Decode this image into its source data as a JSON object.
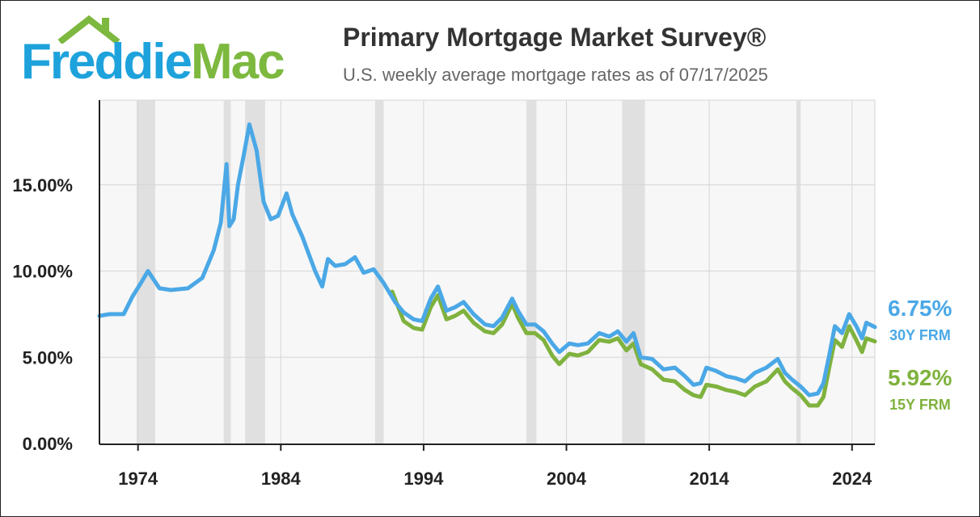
{
  "logo": {
    "word1": "Freddie",
    "word2": "Mac"
  },
  "header": {
    "title": "Primary Mortgage Market Survey®",
    "subtitle": "U.S. weekly average mortgage rates as of 07/17/2025"
  },
  "colors": {
    "frm30": "#4ba8e6",
    "frm15": "#7fb23e",
    "recession": "#e0e0e0",
    "grid": "#d6d6d6",
    "plot_bg": "#f7f7f7"
  },
  "chart_data": {
    "type": "line",
    "title": "Primary Mortgage Market Survey®",
    "subtitle": "U.S. weekly average mortgage rates as of 07/17/2025",
    "xlim": [
      1971.3,
      2025.6
    ],
    "ylim": [
      0,
      20
    ],
    "y_ticks": [
      {
        "value": 0,
        "label": "0.00%"
      },
      {
        "value": 5,
        "label": "5.00%"
      },
      {
        "value": 10,
        "label": "10.00%"
      },
      {
        "value": 15,
        "label": "15.00%"
      }
    ],
    "x_ticks": [
      {
        "value": 1974,
        "label": "1974"
      },
      {
        "value": 1984,
        "label": "1984"
      },
      {
        "value": 1994,
        "label": "1994"
      },
      {
        "value": 2004,
        "label": "2004"
      },
      {
        "value": 2014,
        "label": "2014"
      },
      {
        "value": 2024,
        "label": "2024"
      }
    ],
    "grid": true,
    "recessions": [
      [
        1973.9,
        1975.2
      ],
      [
        1980.0,
        1980.5
      ],
      [
        1981.5,
        1982.9
      ],
      [
        1990.6,
        1991.2
      ],
      [
        2001.2,
        2001.9
      ],
      [
        2007.9,
        2009.5
      ],
      [
        2020.1,
        2020.4
      ]
    ],
    "series": [
      {
        "name": "30Y FRM",
        "end_label": "6.75%",
        "x": [
          1971.3,
          1972.0,
          1973.0,
          1973.6,
          1974.2,
          1974.7,
          1975.5,
          1976.3,
          1977.5,
          1978.5,
          1979.3,
          1979.8,
          1980.2,
          1980.4,
          1980.7,
          1981.0,
          1981.4,
          1981.8,
          1982.3,
          1982.8,
          1983.3,
          1983.8,
          1984.4,
          1984.8,
          1985.5,
          1986.4,
          1986.9,
          1987.3,
          1987.8,
          1988.5,
          1989.2,
          1989.8,
          1990.5,
          1991.2,
          1992.0,
          1992.6,
          1993.3,
          1993.9,
          1994.5,
          1995.0,
          1995.6,
          1996.2,
          1996.8,
          1997.5,
          1998.3,
          1998.9,
          1999.5,
          2000.2,
          2000.6,
          2001.2,
          2001.8,
          2002.4,
          2003.0,
          2003.5,
          2004.2,
          2004.8,
          2005.5,
          2006.3,
          2007.0,
          2007.6,
          2008.2,
          2008.7,
          2009.2,
          2010.0,
          2010.8,
          2011.6,
          2012.3,
          2012.9,
          2013.4,
          2013.8,
          2014.5,
          2015.2,
          2015.8,
          2016.5,
          2017.2,
          2018.0,
          2018.8,
          2019.3,
          2019.8,
          2020.4,
          2021.0,
          2021.6,
          2022.0,
          2022.4,
          2022.8,
          2023.3,
          2023.8,
          2024.3,
          2024.7,
          2025.0,
          2025.6
        ],
        "y": [
          7.4,
          7.5,
          7.5,
          8.5,
          9.3,
          10.0,
          9.0,
          8.9,
          9.0,
          9.6,
          11.2,
          12.8,
          16.2,
          12.6,
          13.0,
          15.0,
          16.7,
          18.5,
          17.0,
          14.0,
          13.0,
          13.2,
          14.5,
          13.3,
          12.0,
          10.0,
          9.1,
          10.7,
          10.3,
          10.4,
          10.8,
          9.9,
          10.1,
          9.3,
          8.2,
          7.6,
          7.2,
          7.1,
          8.4,
          9.1,
          7.7,
          7.9,
          8.2,
          7.5,
          6.9,
          6.8,
          7.3,
          8.4,
          7.7,
          6.9,
          6.9,
          6.5,
          5.8,
          5.3,
          5.8,
          5.7,
          5.8,
          6.4,
          6.2,
          6.5,
          5.9,
          6.4,
          5.0,
          4.9,
          4.3,
          4.4,
          3.9,
          3.4,
          3.5,
          4.4,
          4.2,
          3.9,
          3.8,
          3.6,
          4.1,
          4.4,
          4.9,
          4.1,
          3.7,
          3.3,
          2.8,
          2.9,
          3.5,
          5.1,
          6.8,
          6.4,
          7.5,
          6.8,
          6.1,
          7.0,
          6.75
        ]
      },
      {
        "name": "15Y FRM",
        "end_label": "5.92%",
        "x": [
          1991.8,
          1992.6,
          1993.3,
          1993.9,
          1994.5,
          1995.0,
          1995.6,
          1996.2,
          1996.8,
          1997.5,
          1998.3,
          1998.9,
          1999.5,
          2000.2,
          2000.6,
          2001.2,
          2001.8,
          2002.4,
          2003.0,
          2003.5,
          2004.2,
          2004.8,
          2005.5,
          2006.3,
          2007.0,
          2007.6,
          2008.2,
          2008.7,
          2009.2,
          2010.0,
          2010.8,
          2011.6,
          2012.3,
          2012.9,
          2013.4,
          2013.8,
          2014.5,
          2015.2,
          2015.8,
          2016.5,
          2017.2,
          2018.0,
          2018.8,
          2019.3,
          2019.8,
          2020.4,
          2021.0,
          2021.6,
          2022.0,
          2022.4,
          2022.8,
          2023.3,
          2023.8,
          2024.3,
          2024.7,
          2025.0,
          2025.6
        ],
        "y": [
          8.8,
          7.1,
          6.7,
          6.6,
          7.9,
          8.6,
          7.2,
          7.4,
          7.7,
          7.0,
          6.5,
          6.4,
          6.9,
          8.1,
          7.3,
          6.4,
          6.4,
          6.0,
          5.1,
          4.6,
          5.2,
          5.1,
          5.3,
          6.0,
          5.9,
          6.1,
          5.4,
          5.8,
          4.6,
          4.3,
          3.7,
          3.6,
          3.1,
          2.8,
          2.7,
          3.4,
          3.3,
          3.1,
          3.0,
          2.8,
          3.3,
          3.6,
          4.3,
          3.6,
          3.2,
          2.8,
          2.2,
          2.2,
          2.7,
          4.4,
          6.0,
          5.6,
          6.8,
          6.0,
          5.3,
          6.1,
          5.92
        ]
      }
    ]
  }
}
